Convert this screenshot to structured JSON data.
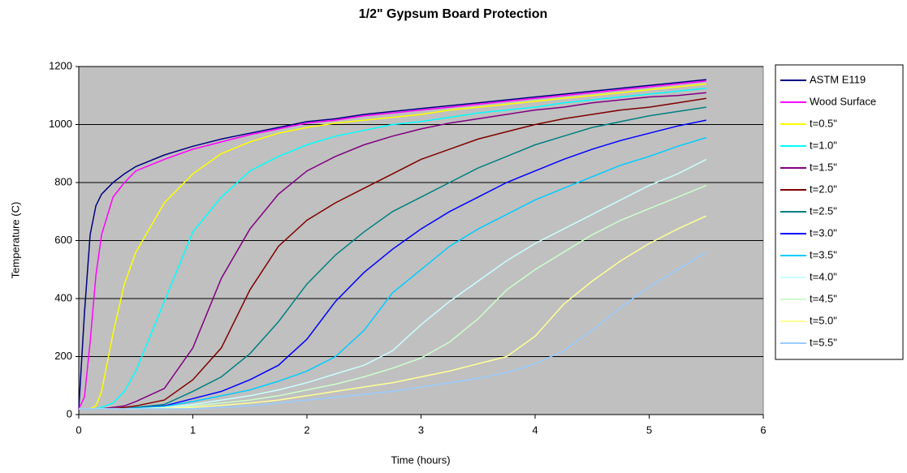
{
  "chart_data": {
    "type": "line",
    "title": "1/2\" Gypsum Board Protection",
    "x_label": "Time (hours)",
    "y_label": "Temperature (C)",
    "xlim": [
      0,
      6
    ],
    "xticks": [
      0,
      1,
      2,
      3,
      4,
      5,
      6
    ],
    "ylim": [
      0,
      1200
    ],
    "yticks": [
      0,
      200,
      400,
      600,
      800,
      1000,
      1200
    ],
    "grid": true,
    "legend": "right",
    "x": [
      0,
      0.05,
      0.1,
      0.15,
      0.2,
      0.3,
      0.4,
      0.5,
      0.75,
      1,
      1.25,
      1.5,
      1.75,
      2,
      2.25,
      2.5,
      2.75,
      3,
      3.25,
      3.5,
      3.75,
      4,
      4.25,
      4.5,
      4.75,
      5,
      5.25,
      5.5
    ],
    "series": [
      {
        "name": "ASTM E119",
        "color": "#000080",
        "values": [
          20,
          350,
          620,
          720,
          760,
          800,
          830,
          855,
          895,
          925,
          950,
          970,
          990,
          1010,
          1020,
          1035,
          1045,
          1055,
          1065,
          1075,
          1085,
          1095,
          1105,
          1115,
          1125,
          1135,
          1145,
          1155
        ]
      },
      {
        "name": "Wood Surface",
        "color": "#ff00ff",
        "values": [
          20,
          60,
          250,
          480,
          620,
          750,
          800,
          840,
          880,
          915,
          940,
          965,
          985,
          1005,
          1015,
          1030,
          1040,
          1050,
          1060,
          1070,
          1080,
          1090,
          1100,
          1110,
          1120,
          1130,
          1140,
          1150
        ]
      },
      {
        "name": "t=0.5\"",
        "color": "#ffff00",
        "values": [
          20,
          20,
          20,
          30,
          80,
          280,
          450,
          560,
          730,
          830,
          900,
          940,
          970,
          990,
          1005,
          1015,
          1025,
          1035,
          1050,
          1060,
          1070,
          1080,
          1090,
          1100,
          1110,
          1120,
          1130,
          1140
        ]
      },
      {
        "name": "t=1.0\"",
        "color": "#00ffff",
        "values": [
          20,
          20,
          20,
          20,
          25,
          40,
          80,
          150,
          390,
          630,
          750,
          840,
          890,
          930,
          960,
          980,
          1000,
          1010,
          1025,
          1040,
          1050,
          1060,
          1075,
          1085,
          1095,
          1105,
          1115,
          1125
        ]
      },
      {
        "name": "t=1.5\"",
        "color": "#800080",
        "values": [
          20,
          20,
          20,
          20,
          20,
          25,
          30,
          45,
          90,
          230,
          470,
          640,
          760,
          840,
          890,
          930,
          960,
          985,
          1005,
          1020,
          1035,
          1050,
          1060,
          1075,
          1085,
          1095,
          1100,
          1110
        ]
      },
      {
        "name": "t=2.0\"",
        "color": "#800000",
        "values": [
          20,
          20,
          20,
          20,
          20,
          20,
          25,
          30,
          50,
          120,
          230,
          430,
          580,
          670,
          730,
          780,
          830,
          880,
          915,
          950,
          975,
          1000,
          1020,
          1035,
          1050,
          1060,
          1075,
          1090
        ]
      },
      {
        "name": "t=2.5\"",
        "color": "#008080",
        "values": [
          20,
          20,
          20,
          20,
          20,
          20,
          20,
          25,
          35,
          80,
          130,
          210,
          320,
          450,
          550,
          630,
          700,
          750,
          800,
          850,
          890,
          930,
          960,
          990,
          1010,
          1030,
          1045,
          1060
        ]
      },
      {
        "name": "t=3.0\"",
        "color": "#0000ff",
        "values": [
          20,
          20,
          20,
          20,
          20,
          20,
          20,
          22,
          30,
          55,
          80,
          120,
          170,
          260,
          390,
          490,
          570,
          640,
          700,
          750,
          800,
          840,
          880,
          915,
          945,
          970,
          995,
          1015
        ]
      },
      {
        "name": "t=3.5\"",
        "color": "#00ccff",
        "values": [
          20,
          20,
          20,
          20,
          20,
          20,
          20,
          22,
          28,
          45,
          65,
          85,
          115,
          150,
          200,
          290,
          420,
          500,
          580,
          640,
          690,
          740,
          780,
          820,
          860,
          890,
          925,
          955
        ]
      },
      {
        "name": "t=4.0\"",
        "color": "#ccffff",
        "values": [
          20,
          20,
          20,
          20,
          20,
          20,
          20,
          20,
          25,
          35,
          50,
          65,
          85,
          110,
          140,
          170,
          220,
          310,
          390,
          460,
          530,
          590,
          640,
          690,
          740,
          790,
          830,
          880
        ]
      },
      {
        "name": "t=4.5\"",
        "color": "#ccffcc",
        "values": [
          20,
          20,
          20,
          20,
          20,
          20,
          20,
          20,
          22,
          30,
          40,
          50,
          65,
          85,
          105,
          130,
          160,
          195,
          250,
          330,
          430,
          500,
          560,
          620,
          670,
          710,
          750,
          790
        ]
      },
      {
        "name": "t=5.0\"",
        "color": "#ffff99",
        "values": [
          20,
          20,
          20,
          20,
          20,
          20,
          20,
          20,
          22,
          25,
          32,
          40,
          50,
          65,
          80,
          95,
          110,
          130,
          150,
          175,
          200,
          270,
          380,
          460,
          530,
          590,
          640,
          685
        ]
      },
      {
        "name": "t=5.5\"",
        "color": "#99ccff",
        "values": [
          20,
          20,
          20,
          20,
          20,
          20,
          20,
          20,
          20,
          20,
          25,
          30,
          40,
          50,
          60,
          70,
          80,
          95,
          110,
          125,
          145,
          175,
          220,
          290,
          370,
          440,
          500,
          560
        ]
      }
    ]
  }
}
